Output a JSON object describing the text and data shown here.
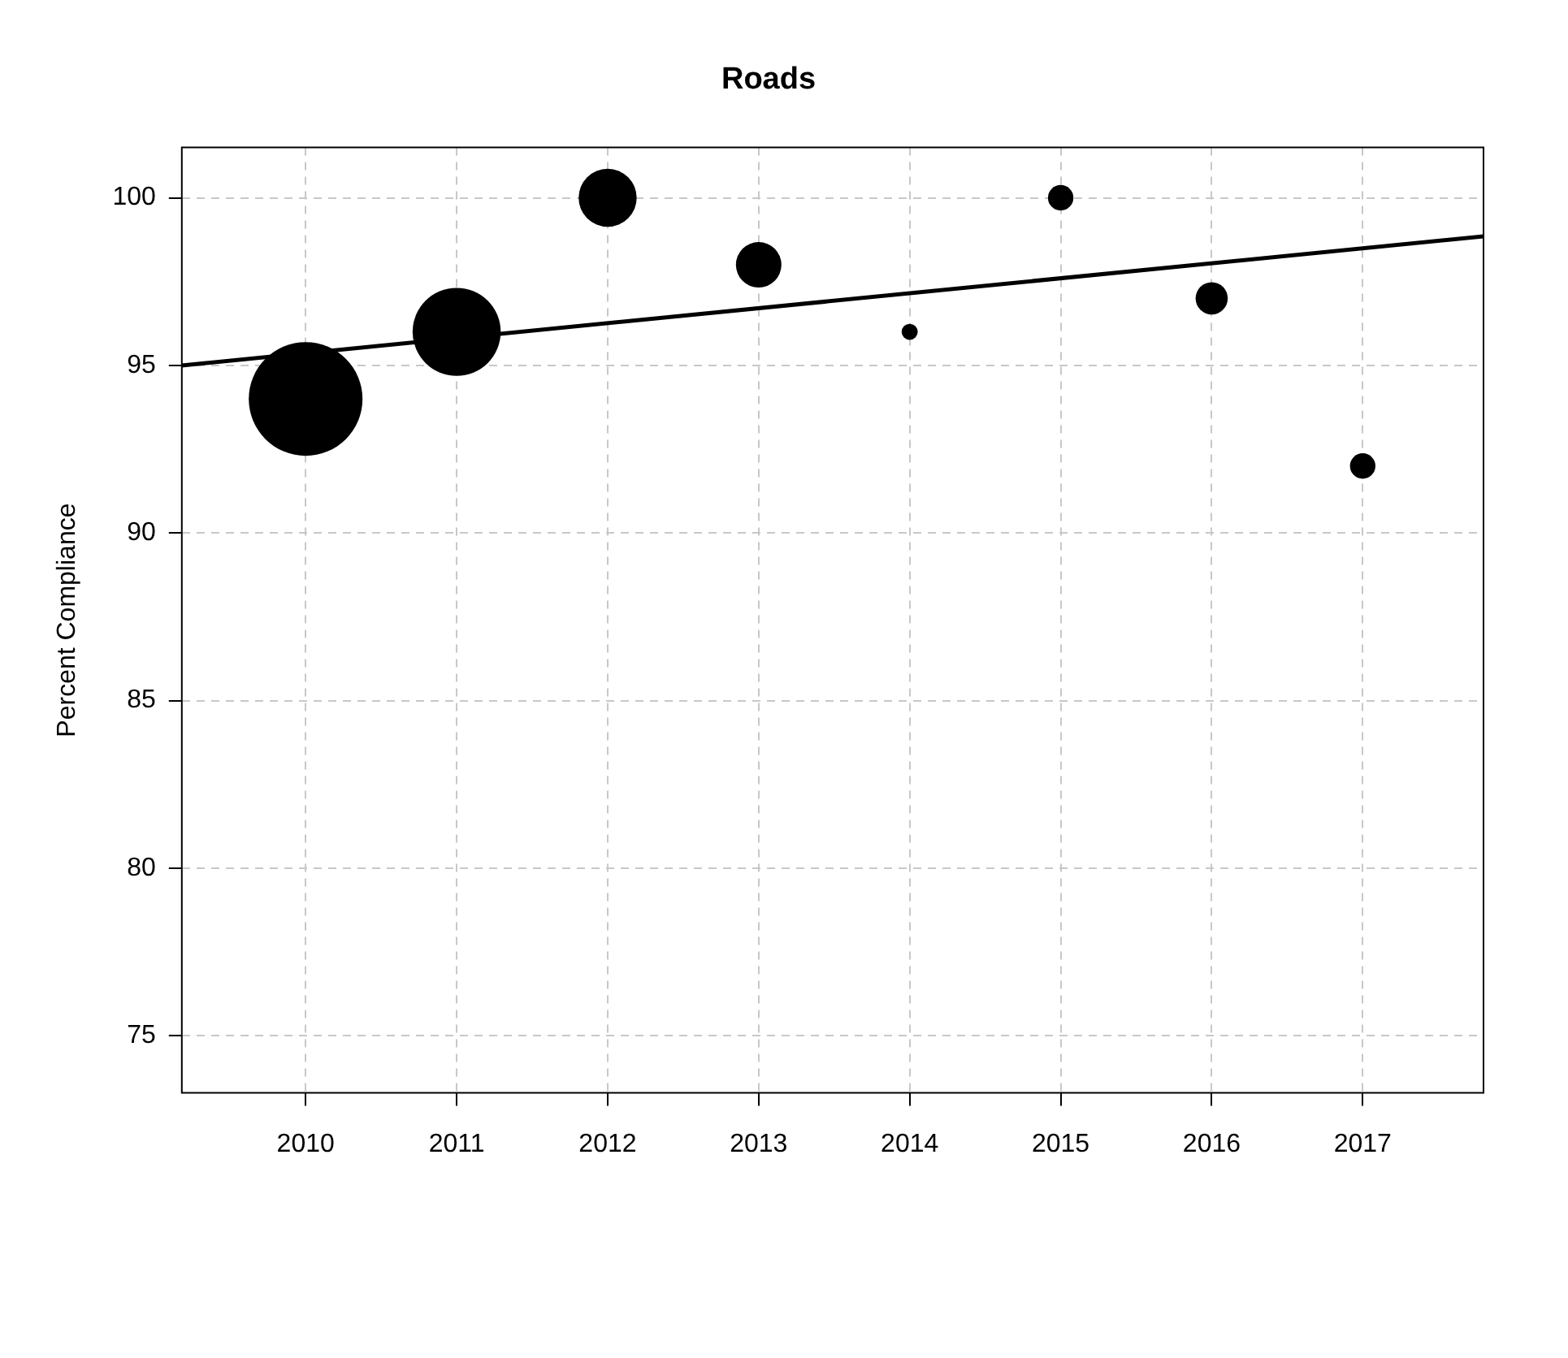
{
  "chart_data": {
    "type": "bubble",
    "title": "Roads",
    "ylabel": "Percent Compliance",
    "x": [
      2010,
      2011,
      2012,
      2013,
      2014,
      2015,
      2016,
      2017
    ],
    "xlim": [
      2009.18,
      2017.8
    ],
    "xticks": [
      2010,
      2011,
      2012,
      2013,
      2014,
      2015,
      2016,
      2017
    ],
    "ylim": [
      73.3,
      101.5
    ],
    "yticks": [
      75,
      80,
      85,
      90,
      95,
      100
    ],
    "grid": true,
    "series": [
      {
        "type": "bubble",
        "color": "#000000",
        "values": [
          94,
          96,
          100,
          98,
          96,
          100,
          97,
          92
        ],
        "sizes": [
          1,
          0.6,
          0.26,
          0.16,
          0.02,
          0.05,
          0.08,
          0.05
        ]
      },
      {
        "type": "line",
        "color": "#000000",
        "x": [
          2009.18,
          2017.8
        ],
        "values": [
          95.0,
          98.85
        ]
      }
    ]
  }
}
